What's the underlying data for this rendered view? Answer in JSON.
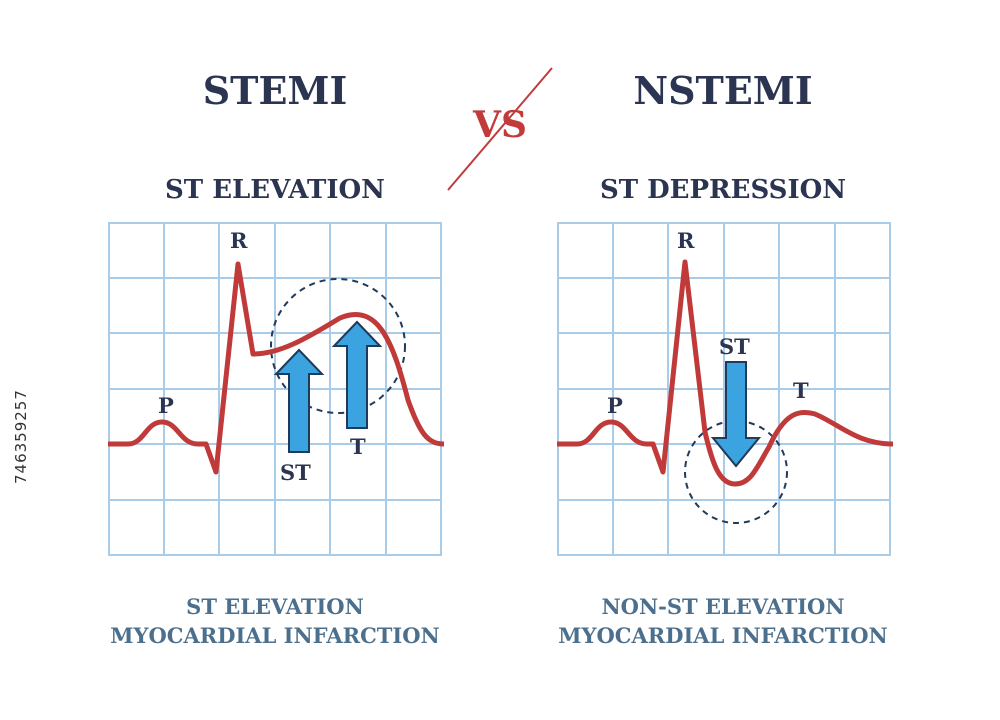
{
  "left": {
    "title": "STEMI",
    "subtitle": "ST ELEVATION",
    "caption_line1": "ST ELEVATION",
    "caption_line2": "MYOCARDIAL INFARCTION",
    "wave_labels": {
      "p": "P",
      "r": "R",
      "st": "ST",
      "t": "T"
    }
  },
  "vs": "VS",
  "right": {
    "title": "NSTEMI",
    "subtitle": "ST DEPRESSION",
    "caption_line1": "NON-ST ELEVATION",
    "caption_line2": "MYOCARDIAL INFARCTION",
    "wave_labels": {
      "p": "P",
      "r": "R",
      "st": "ST",
      "t": "T"
    }
  },
  "watermark": "746359257",
  "colors": {
    "ecg_trace": "#c03a3a",
    "grid": "#a9cde8",
    "arrow_fill": "#3aa3e0",
    "arrow_stroke": "#1f3a5a",
    "title_text": "#2b3450",
    "caption_text": "#4c6f8d",
    "vs_red": "#c23b3b"
  }
}
